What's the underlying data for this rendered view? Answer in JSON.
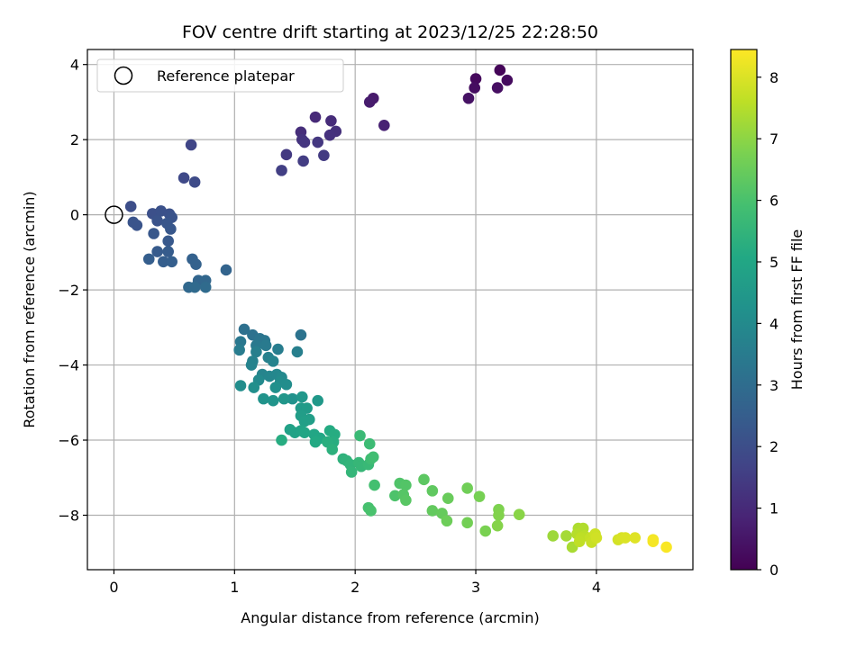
{
  "chart_data": {
    "type": "scatter",
    "title": "FOV centre drift starting at 2023/12/25 22:28:50",
    "xlabel": "Angular distance from reference (arcmin)",
    "ylabel": "Rotation from reference (arcmin)",
    "xlim": [
      -0.22,
      4.8
    ],
    "ylim": [
      -9.45,
      4.4
    ],
    "xticks": [
      0,
      1,
      2,
      3,
      4
    ],
    "xtick_labels": [
      "0",
      "1",
      "2",
      "3",
      "4"
    ],
    "yticks": [
      -8,
      -6,
      -4,
      -2,
      0,
      2,
      4
    ],
    "ytick_labels": [
      "−8",
      "−6",
      "−4",
      "−2",
      "0",
      "2",
      "4"
    ],
    "grid": true,
    "legend": {
      "position": "top-left",
      "entries": [
        "Reference platepar"
      ]
    },
    "reference_point": {
      "x": 0,
      "y": 0
    },
    "colorbar": {
      "label": "Hours from first FF file",
      "colormap": "viridis",
      "range": [
        0,
        8.45
      ],
      "ticks": [
        0,
        1,
        2,
        3,
        4,
        5,
        6,
        7,
        8
      ],
      "tick_labels": [
        "0",
        "1",
        "2",
        "3",
        "4",
        "5",
        "6",
        "7",
        "8"
      ]
    },
    "points": [
      [
        3.2,
        3.85,
        0.1
      ],
      [
        3.0,
        3.62,
        0.2
      ],
      [
        3.26,
        3.58,
        0.25
      ],
      [
        2.99,
        3.38,
        0.3
      ],
      [
        3.18,
        3.38,
        0.35
      ],
      [
        2.94,
        3.1,
        0.4
      ],
      [
        2.15,
        3.1,
        0.6
      ],
      [
        2.12,
        3.0,
        0.65
      ],
      [
        2.24,
        2.38,
        0.8
      ],
      [
        1.67,
        2.6,
        1.0
      ],
      [
        1.8,
        2.5,
        1.05
      ],
      [
        1.55,
        2.2,
        1.1
      ],
      [
        1.84,
        2.22,
        1.15
      ],
      [
        1.79,
        2.12,
        1.2
      ],
      [
        1.56,
        2.0,
        1.25
      ],
      [
        1.58,
        1.93,
        1.3
      ],
      [
        1.69,
        1.93,
        1.35
      ],
      [
        1.43,
        1.6,
        1.4
      ],
      [
        1.74,
        1.58,
        1.45
      ],
      [
        1.57,
        1.43,
        1.5
      ],
      [
        1.39,
        1.18,
        1.55
      ],
      [
        0.64,
        1.86,
        1.75
      ],
      [
        0.58,
        0.98,
        1.85
      ],
      [
        0.67,
        0.87,
        1.9
      ],
      [
        0.14,
        0.22,
        2.0
      ],
      [
        0.32,
        0.03,
        2.05
      ],
      [
        0.39,
        0.1,
        2.1
      ],
      [
        0.46,
        0.02,
        2.1
      ],
      [
        0.48,
        -0.07,
        2.15
      ],
      [
        0.36,
        -0.16,
        2.15
      ],
      [
        0.16,
        -0.2,
        2.2
      ],
      [
        0.19,
        -0.28,
        2.2
      ],
      [
        0.44,
        -0.23,
        2.25
      ],
      [
        0.47,
        -0.38,
        2.3
      ],
      [
        0.33,
        -0.5,
        2.3
      ],
      [
        0.45,
        -0.7,
        2.35
      ],
      [
        0.36,
        -0.98,
        2.4
      ],
      [
        0.45,
        -0.98,
        2.45
      ],
      [
        0.29,
        -1.18,
        2.5
      ],
      [
        0.41,
        -1.25,
        2.5
      ],
      [
        0.48,
        -1.25,
        2.55
      ],
      [
        0.65,
        -1.18,
        2.6
      ],
      [
        0.68,
        -1.32,
        2.65
      ],
      [
        0.93,
        -1.47,
        2.7
      ],
      [
        0.7,
        -1.75,
        2.75
      ],
      [
        0.76,
        -1.75,
        2.8
      ],
      [
        0.62,
        -1.93,
        2.85
      ],
      [
        0.67,
        -1.93,
        2.9
      ],
      [
        0.76,
        -1.93,
        2.95
      ],
      [
        1.08,
        -3.05,
        3.1
      ],
      [
        1.15,
        -3.2,
        3.15
      ],
      [
        1.55,
        -3.2,
        3.2
      ],
      [
        1.21,
        -3.3,
        3.25
      ],
      [
        1.25,
        -3.35,
        3.3
      ],
      [
        1.05,
        -3.38,
        3.35
      ],
      [
        1.18,
        -3.48,
        3.4
      ],
      [
        1.26,
        -3.48,
        3.45
      ],
      [
        1.04,
        -3.6,
        3.5
      ],
      [
        1.36,
        -3.58,
        3.55
      ],
      [
        1.52,
        -3.65,
        3.6
      ],
      [
        1.18,
        -3.65,
        3.6
      ],
      [
        1.28,
        -3.8,
        3.65
      ],
      [
        1.15,
        -3.9,
        3.7
      ],
      [
        1.32,
        -3.9,
        3.75
      ],
      [
        1.14,
        -4.0,
        3.75
      ],
      [
        1.23,
        -4.25,
        3.8
      ],
      [
        1.29,
        -4.3,
        3.85
      ],
      [
        1.35,
        -4.25,
        3.9
      ],
      [
        1.39,
        -4.33,
        3.95
      ],
      [
        1.2,
        -4.4,
        4.0
      ],
      [
        1.38,
        -4.45,
        4.05
      ],
      [
        1.43,
        -4.52,
        4.1
      ],
      [
        1.05,
        -4.55,
        4.1
      ],
      [
        1.16,
        -4.6,
        4.15
      ],
      [
        1.34,
        -4.6,
        4.2
      ],
      [
        1.48,
        -4.9,
        4.25
      ],
      [
        1.24,
        -4.9,
        4.3
      ],
      [
        1.32,
        -4.95,
        4.35
      ],
      [
        1.41,
        -4.9,
        4.4
      ],
      [
        1.56,
        -4.85,
        4.45
      ],
      [
        1.69,
        -4.95,
        4.5
      ],
      [
        1.55,
        -5.15,
        4.55
      ],
      [
        1.6,
        -5.15,
        4.6
      ],
      [
        1.55,
        -5.35,
        4.65
      ],
      [
        1.62,
        -5.45,
        4.7
      ],
      [
        1.58,
        -5.5,
        4.75
      ],
      [
        1.46,
        -5.72,
        4.8
      ],
      [
        1.5,
        -5.8,
        4.85
      ],
      [
        1.55,
        -5.75,
        4.9
      ],
      [
        1.58,
        -5.8,
        4.95
      ],
      [
        1.66,
        -5.85,
        5.0
      ],
      [
        1.71,
        -5.95,
        5.05
      ],
      [
        1.67,
        -6.05,
        5.1
      ],
      [
        1.79,
        -5.75,
        5.15
      ],
      [
        1.83,
        -5.85,
        5.2
      ],
      [
        1.39,
        -6.0,
        5.2
      ],
      [
        1.82,
        -6.05,
        5.25
      ],
      [
        1.77,
        -6.05,
        5.3
      ],
      [
        1.81,
        -6.25,
        5.35
      ],
      [
        1.9,
        -6.5,
        5.4
      ],
      [
        1.93,
        -6.55,
        5.45
      ],
      [
        1.96,
        -6.65,
        5.5
      ],
      [
        1.97,
        -6.85,
        5.55
      ],
      [
        2.03,
        -6.6,
        5.6
      ],
      [
        2.05,
        -6.7,
        5.6
      ],
      [
        2.11,
        -6.65,
        5.65
      ],
      [
        2.04,
        -5.88,
        5.7
      ],
      [
        2.12,
        -6.1,
        5.75
      ],
      [
        2.13,
        -6.5,
        5.8
      ],
      [
        2.15,
        -6.45,
        5.85
      ],
      [
        2.16,
        -7.2,
        5.9
      ],
      [
        2.11,
        -7.8,
        5.95
      ],
      [
        2.13,
        -7.88,
        6.0
      ],
      [
        2.33,
        -7.48,
        6.05
      ],
      [
        2.37,
        -7.15,
        6.1
      ],
      [
        2.42,
        -7.2,
        6.15
      ],
      [
        2.4,
        -7.45,
        6.2
      ],
      [
        2.42,
        -7.6,
        6.25
      ],
      [
        2.57,
        -7.05,
        6.3
      ],
      [
        2.64,
        -7.35,
        6.35
      ],
      [
        2.64,
        -7.88,
        6.4
      ],
      [
        2.72,
        -7.95,
        6.45
      ],
      [
        2.77,
        -7.55,
        6.5
      ],
      [
        2.76,
        -8.15,
        6.55
      ],
      [
        2.93,
        -7.28,
        6.6
      ],
      [
        2.93,
        -8.2,
        6.65
      ],
      [
        3.03,
        -7.5,
        6.7
      ],
      [
        3.08,
        -8.42,
        6.75
      ],
      [
        3.19,
        -7.85,
        6.8
      ],
      [
        3.19,
        -8.0,
        6.85
      ],
      [
        3.18,
        -8.28,
        6.9
      ],
      [
        3.36,
        -7.98,
        6.95
      ],
      [
        3.64,
        -8.55,
        7.2
      ],
      [
        3.75,
        -8.55,
        7.3
      ],
      [
        3.8,
        -8.85,
        7.35
      ],
      [
        3.85,
        -8.35,
        7.4
      ],
      [
        3.89,
        -8.35,
        7.45
      ],
      [
        3.84,
        -8.5,
        7.5
      ],
      [
        3.9,
        -8.55,
        7.55
      ],
      [
        3.87,
        -8.6,
        7.6
      ],
      [
        3.86,
        -8.7,
        7.65
      ],
      [
        3.95,
        -8.6,
        7.7
      ],
      [
        3.96,
        -8.72,
        7.75
      ],
      [
        3.99,
        -8.5,
        7.8
      ],
      [
        4.0,
        -8.6,
        7.85
      ],
      [
        4.18,
        -8.65,
        7.9
      ],
      [
        4.21,
        -8.6,
        7.95
      ],
      [
        4.24,
        -8.6,
        8.0
      ],
      [
        4.32,
        -8.6,
        8.05
      ],
      [
        4.47,
        -8.65,
        8.3
      ],
      [
        4.47,
        -8.7,
        8.35
      ],
      [
        4.58,
        -8.85,
        8.4
      ]
    ]
  }
}
